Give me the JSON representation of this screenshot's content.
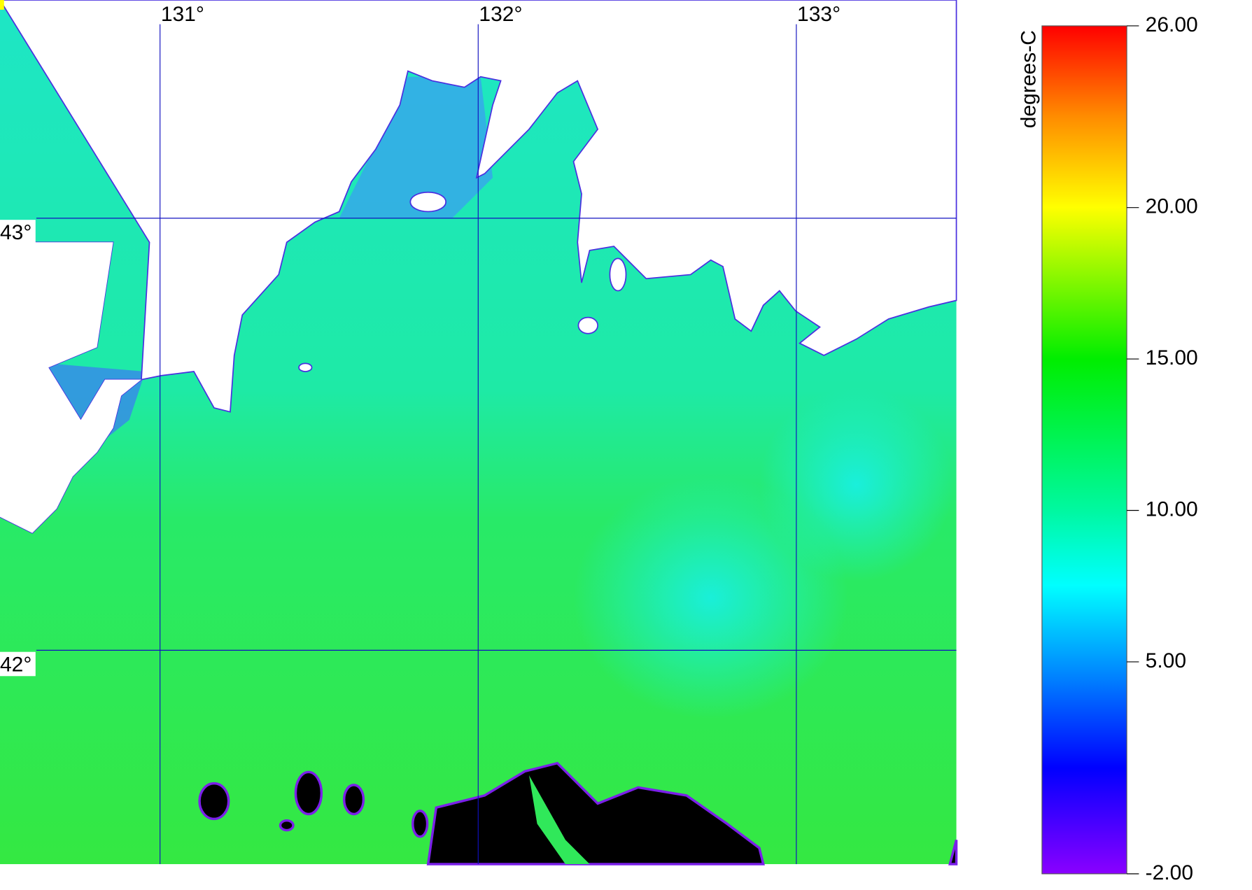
{
  "map": {
    "lonlim": [
      130.497,
      133.503
    ],
    "latlim": [
      41.505,
      43.505
    ],
    "lon_ticks": [
      {
        "value": 131,
        "label": "131°"
      },
      {
        "value": 132,
        "label": "132°"
      },
      {
        "value": 133,
        "label": "133°"
      }
    ],
    "lat_ticks": [
      {
        "value": 43,
        "label": "43°"
      },
      {
        "value": 42,
        "label": "42°"
      }
    ]
  },
  "colorbar": {
    "label": "degrees-C",
    "lim": [
      -2,
      26
    ],
    "ticks": [
      {
        "value": 26,
        "label": "26.00"
      },
      {
        "value": 20,
        "label": "20.00"
      },
      {
        "value": 15,
        "label": "15.00"
      },
      {
        "value": 10,
        "label": "10.00"
      },
      {
        "value": 5,
        "label": "5.00"
      },
      {
        "value": -2,
        "label": "-2.00"
      }
    ]
  }
}
